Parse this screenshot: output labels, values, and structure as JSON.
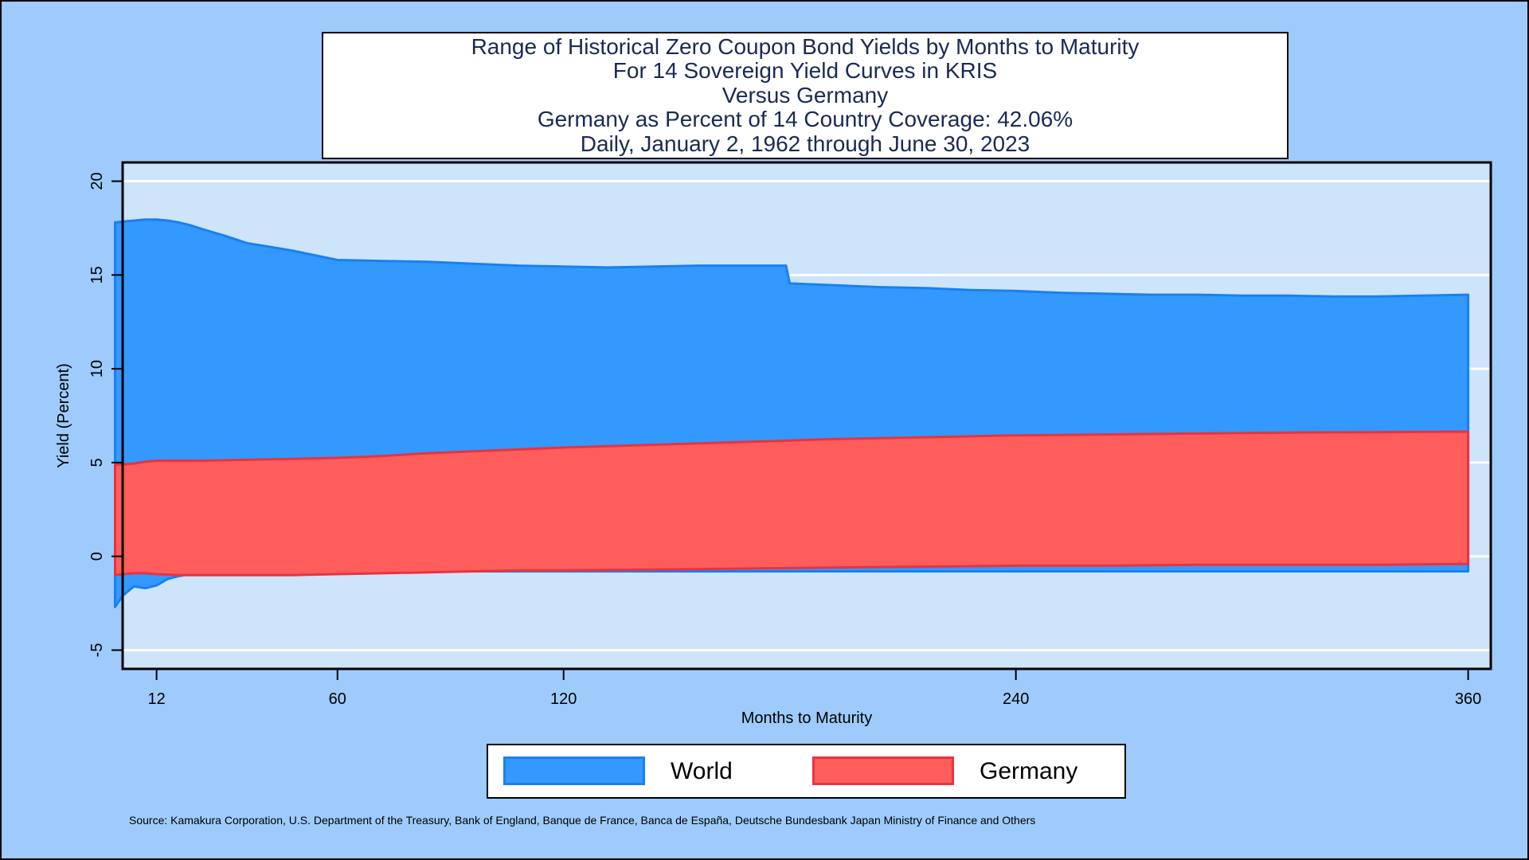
{
  "title_lines": [
    "Range of Historical Zero Coupon Bond Yields by Months to Maturity",
    "For 14 Sovereign Yield Curves in KRIS",
    "Versus Germany",
    "Germany as Percent of 14 Country Coverage: 42.06%",
    "Daily, January 2, 1962 through June 30, 2023"
  ],
  "source_note": "Source: Kamakura Corporation, U.S. Department of the Treasury, Bank of England, Banque de France, Banca de España, Deutsche Bundesbank Japan Ministry of Finance and Others",
  "legend": [
    {
      "label": "World",
      "fill": "#3399ff",
      "stroke": "#1a80f0"
    },
    {
      "label": "Germany",
      "fill": "#ff5c5c",
      "stroke": "#e8333f"
    }
  ],
  "colors": {
    "background": "#9ecbfc",
    "plot_background": "#cde4fb",
    "gridline": "#ffffff"
  },
  "chart_data": {
    "type": "area",
    "xlabel": "Months to Maturity",
    "ylabel": "Yield (Percent)",
    "xlim": [
      3,
      366
    ],
    "ylim": [
      -6,
      21
    ],
    "x_ticks": [
      12,
      60,
      120,
      240,
      360
    ],
    "y_ticks": [
      -5,
      0,
      5,
      10,
      15,
      20
    ],
    "grid": true,
    "legend_position": "bottom",
    "series": [
      {
        "name": "World",
        "x": [
          1,
          3,
          6,
          9,
          12,
          15,
          18,
          21,
          24,
          30,
          36,
          42,
          48,
          54,
          60,
          72,
          84,
          96,
          108,
          120,
          132,
          144,
          156,
          168,
          179,
          180,
          192,
          204,
          216,
          228,
          240,
          252,
          264,
          276,
          288,
          300,
          312,
          324,
          336,
          348,
          360
        ],
        "upper": [
          17.8,
          17.85,
          17.9,
          17.95,
          17.95,
          17.9,
          17.8,
          17.65,
          17.45,
          17.1,
          16.7,
          16.5,
          16.3,
          16.05,
          15.8,
          15.75,
          15.7,
          15.6,
          15.5,
          15.45,
          15.4,
          15.45,
          15.5,
          15.5,
          15.5,
          14.55,
          14.45,
          14.35,
          14.3,
          14.2,
          14.15,
          14.05,
          14.0,
          13.95,
          13.95,
          13.9,
          13.9,
          13.85,
          13.85,
          13.9,
          13.95
        ],
        "lower": [
          -2.7,
          -2.1,
          -1.6,
          -1.7,
          -1.55,
          -1.2,
          -1.05,
          -0.95,
          -0.9,
          -0.9,
          -0.85,
          -0.85,
          -0.85,
          -0.85,
          -0.85,
          -0.85,
          -0.8,
          -0.8,
          -0.8,
          -0.8,
          -0.8,
          -0.8,
          -0.8,
          -0.8,
          -0.8,
          -0.8,
          -0.8,
          -0.8,
          -0.8,
          -0.8,
          -0.8,
          -0.8,
          -0.8,
          -0.8,
          -0.8,
          -0.8,
          -0.8,
          -0.8,
          -0.8,
          -0.8,
          -0.8
        ]
      },
      {
        "name": "Germany",
        "x": [
          1,
          3,
          6,
          9,
          12,
          18,
          24,
          36,
          48,
          60,
          72,
          84,
          96,
          108,
          120,
          144,
          168,
          192,
          216,
          240,
          264,
          288,
          312,
          336,
          360
        ],
        "upper": [
          4.9,
          4.9,
          4.95,
          5.05,
          5.1,
          5.1,
          5.1,
          5.15,
          5.2,
          5.25,
          5.35,
          5.5,
          5.6,
          5.7,
          5.8,
          5.95,
          6.1,
          6.25,
          6.35,
          6.45,
          6.5,
          6.55,
          6.6,
          6.62,
          6.65
        ],
        "lower": [
          -1.0,
          -0.95,
          -0.9,
          -0.9,
          -0.95,
          -1.0,
          -1.0,
          -1.0,
          -1.0,
          -0.95,
          -0.9,
          -0.85,
          -0.8,
          -0.75,
          -0.75,
          -0.7,
          -0.65,
          -0.6,
          -0.55,
          -0.5,
          -0.5,
          -0.45,
          -0.45,
          -0.45,
          -0.4
        ]
      }
    ]
  }
}
